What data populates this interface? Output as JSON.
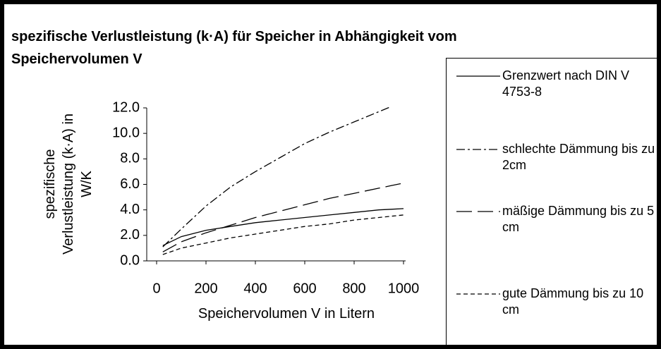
{
  "chart_data": {
    "type": "line",
    "title": "spezifische Verlustleistung (k·A) für Speicher in Abhängigkeit vom Speichervolumen V",
    "x_label": "Speichervolumen V in Litern",
    "y_label": "spezifische Verlustleistung (k·A) in W/K",
    "x": [
      25,
      100,
      200,
      300,
      400,
      500,
      600,
      700,
      800,
      900,
      950,
      1000
    ],
    "series": [
      {
        "name": "Grenzwert nach DIN V 4753-8",
        "color": "#000000",
        "dash": "none",
        "values": [
          1.2,
          1.9,
          2.4,
          2.7,
          3.0,
          3.2,
          3.4,
          3.6,
          3.8,
          4.0,
          4.05,
          4.1
        ]
      },
      {
        "name": "schlechte Dämmung bis zu 2cm",
        "color": "#000000",
        "dash": "12,4,3,4",
        "values": [
          1.1,
          2.5,
          4.3,
          5.8,
          7.0,
          8.1,
          9.2,
          10.1,
          10.9,
          11.7,
          12.1,
          null
        ]
      },
      {
        "name": "mäßige Dämmung bis zu 5 cm",
        "color": "#000000",
        "dash": "22,8",
        "values": [
          0.7,
          1.5,
          2.2,
          2.8,
          3.4,
          3.9,
          4.4,
          4.9,
          5.3,
          5.7,
          5.9,
          6.1
        ]
      },
      {
        "name": "gute Dämmung bis zu 10 cm",
        "color": "#000000",
        "dash": "6,4",
        "values": [
          0.5,
          1.0,
          1.4,
          1.8,
          2.1,
          2.4,
          2.7,
          2.9,
          3.2,
          3.4,
          3.5,
          3.6
        ]
      }
    ],
    "xlim": [
      0,
      1000
    ],
    "xticks": [
      0,
      200,
      400,
      600,
      800,
      1000
    ],
    "ylim": [
      0,
      12
    ],
    "yticks": [
      {
        "value": 0,
        "label": "0.0"
      },
      {
        "value": 2,
        "label": "2.0"
      },
      {
        "value": 4,
        "label": "4.0"
      },
      {
        "value": 6,
        "label": "6.0"
      },
      {
        "value": 8,
        "label": "8.0"
      },
      {
        "value": 10,
        "label": "10.0"
      },
      {
        "value": 12,
        "label": "12.0"
      }
    ],
    "grid": false,
    "legend": "right"
  }
}
